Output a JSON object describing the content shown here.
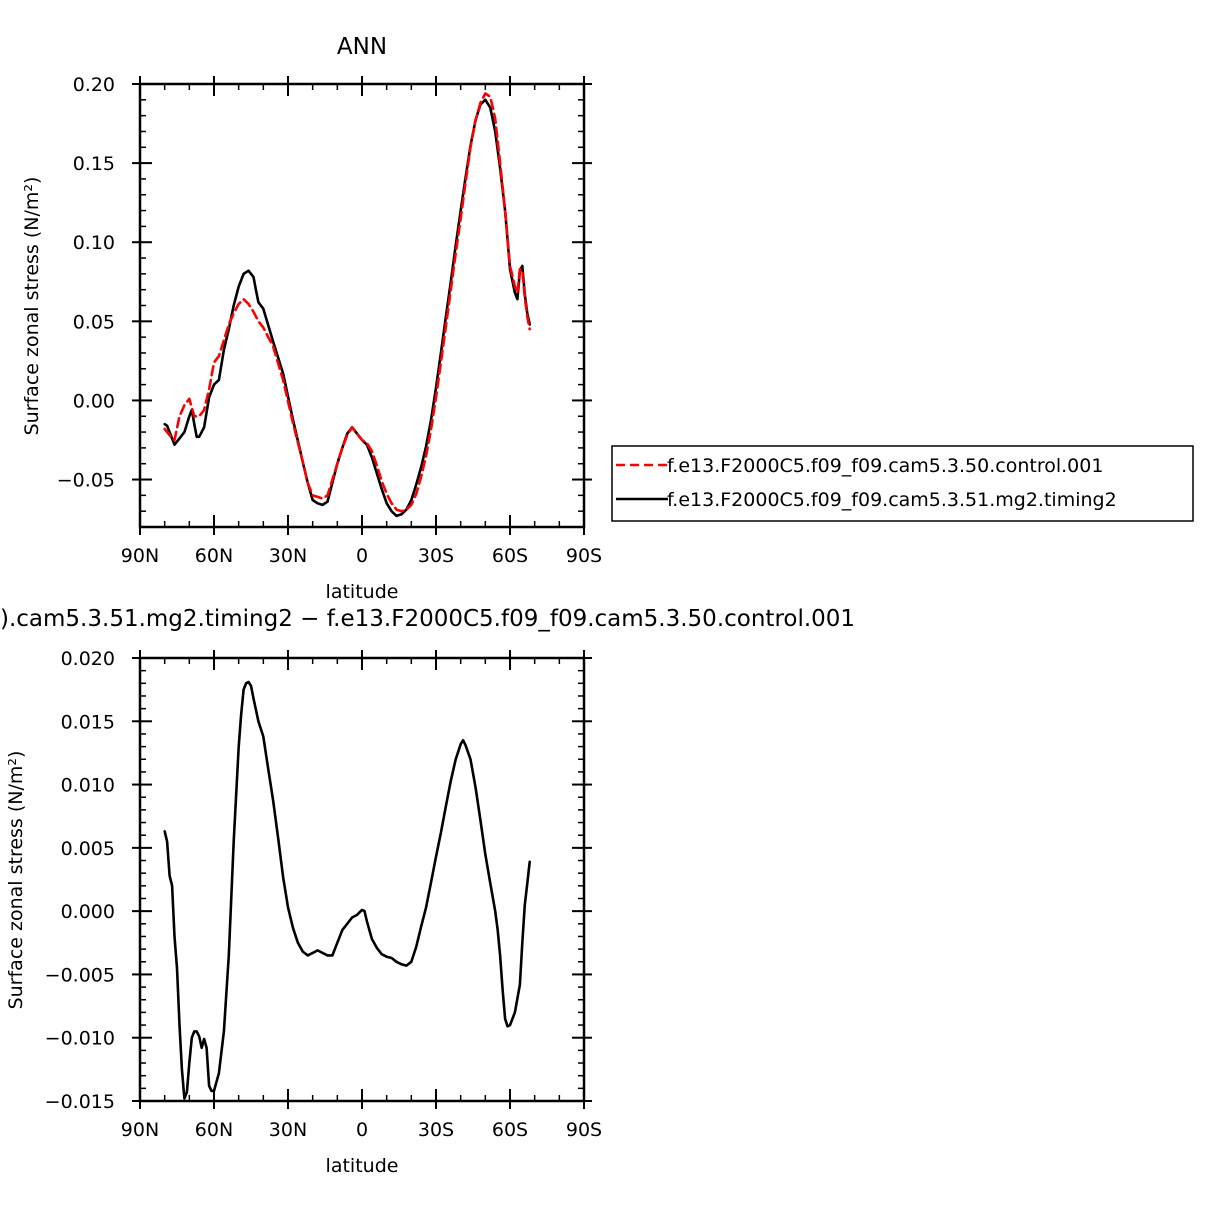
{
  "chart_data": [
    {
      "type": "line",
      "title": "ANN",
      "xlabel": "latitude",
      "ylabel": "Surface zonal stress (N/m²)",
      "xlim": [
        -90,
        90
      ],
      "ylim": [
        -0.08,
        0.2
      ],
      "x_ticks": [
        -90,
        -60,
        -30,
        0,
        30,
        60,
        90
      ],
      "x_tick_labels": [
        "90N",
        "60N",
        "30N",
        "0",
        "30S",
        "60S",
        "90S"
      ],
      "y_ticks": [
        -0.05,
        0.0,
        0.05,
        0.1,
        0.15,
        0.2
      ],
      "y_tick_labels": [
        "−0.05",
        "0.00",
        "0.05",
        "0.10",
        "0.15",
        "0.20"
      ],
      "legend_position": "right",
      "series": [
        {
          "name": "f.e13.F2000C5.f09_f09.cam5.3.50.control.001",
          "color": "#ff0000",
          "style": "dashed",
          "x": [
            -80,
            -78,
            -76,
            -74,
            -72,
            -70,
            -68,
            -66,
            -64,
            -62,
            -60,
            -58,
            -56,
            -54,
            -52,
            -50,
            -48,
            -46,
            -44,
            -42,
            -40,
            -36,
            -32,
            -28,
            -24,
            -22,
            -20,
            -18,
            -16,
            -14,
            -12,
            -10,
            -8,
            -6,
            -4,
            -2,
            0,
            2,
            4,
            6,
            8,
            10,
            12,
            14,
            16,
            18,
            20,
            22,
            24,
            26,
            28,
            30,
            32,
            34,
            36,
            38,
            40,
            42,
            44,
            46,
            48,
            50,
            52,
            54,
            56,
            58,
            60,
            62,
            63,
            64,
            65,
            66,
            67,
            68
          ],
          "y": [
            -0.018,
            -0.022,
            -0.025,
            -0.01,
            -0.003,
            0.001,
            -0.01,
            -0.01,
            -0.006,
            0.007,
            0.024,
            0.028,
            0.038,
            0.048,
            0.055,
            0.061,
            0.064,
            0.061,
            0.056,
            0.05,
            0.046,
            0.034,
            0.013,
            -0.014,
            -0.039,
            -0.052,
            -0.06,
            -0.061,
            -0.062,
            -0.06,
            -0.05,
            -0.04,
            -0.03,
            -0.022,
            -0.017,
            -0.021,
            -0.025,
            -0.027,
            -0.032,
            -0.041,
            -0.051,
            -0.059,
            -0.065,
            -0.069,
            -0.07,
            -0.069,
            -0.066,
            -0.059,
            -0.048,
            -0.035,
            -0.018,
            0.002,
            0.024,
            0.047,
            0.07,
            0.093,
            0.115,
            0.138,
            0.16,
            0.177,
            0.188,
            0.194,
            0.192,
            0.178,
            0.15,
            0.12,
            0.085,
            0.072,
            0.068,
            0.083,
            0.082,
            0.065,
            0.053,
            0.045
          ]
        },
        {
          "name": "f.e13.F2000C5.f09_f09.cam5.3.51.mg2.timing2",
          "color": "#000000",
          "style": "solid",
          "x": [
            -80,
            -79,
            -78,
            -76,
            -74,
            -72,
            -70,
            -69,
            -68,
            -67,
            -66,
            -64,
            -62,
            -60,
            -58,
            -56,
            -54,
            -52,
            -50,
            -48,
            -46,
            -44,
            -43,
            -42,
            -40,
            -36,
            -32,
            -28,
            -24,
            -22,
            -20,
            -18,
            -16,
            -14,
            -12,
            -10,
            -8,
            -6,
            -4,
            -2,
            0,
            2,
            4,
            6,
            8,
            10,
            12,
            14,
            16,
            18,
            20,
            22,
            24,
            26,
            28,
            30,
            32,
            34,
            36,
            38,
            40,
            42,
            44,
            46,
            48,
            50,
            52,
            54,
            56,
            58,
            60,
            62,
            63,
            64,
            65,
            66,
            67,
            68
          ],
          "y": [
            -0.015,
            -0.016,
            -0.02,
            -0.028,
            -0.024,
            -0.02,
            -0.01,
            -0.006,
            -0.015,
            -0.023,
            -0.023,
            -0.017,
            0.002,
            0.01,
            0.013,
            0.032,
            0.045,
            0.06,
            0.072,
            0.08,
            0.082,
            0.078,
            0.07,
            0.062,
            0.058,
            0.037,
            0.017,
            -0.012,
            -0.039,
            -0.052,
            -0.063,
            -0.065,
            -0.066,
            -0.064,
            -0.052,
            -0.04,
            -0.03,
            -0.021,
            -0.017,
            -0.021,
            -0.025,
            -0.028,
            -0.036,
            -0.046,
            -0.056,
            -0.065,
            -0.07,
            -0.073,
            -0.072,
            -0.069,
            -0.063,
            -0.053,
            -0.042,
            -0.029,
            -0.012,
            0.008,
            0.03,
            0.053,
            0.075,
            0.098,
            0.12,
            0.141,
            0.161,
            0.177,
            0.187,
            0.19,
            0.185,
            0.17,
            0.147,
            0.12,
            0.083,
            0.068,
            0.064,
            0.082,
            0.085,
            0.067,
            0.055,
            0.048
          ]
        }
      ]
    },
    {
      "type": "line",
      "title": ").cam5.3.51.mg2.timing2 − f.e13.F2000C5.f09_f09.cam5.3.50.control.001",
      "xlabel": "latitude",
      "ylabel": "Surface zonal stress (N/m²)",
      "xlim": [
        -90,
        90
      ],
      "ylim": [
        -0.015,
        0.02
      ],
      "x_ticks": [
        -90,
        -60,
        -30,
        0,
        30,
        60,
        90
      ],
      "x_tick_labels": [
        "90N",
        "60N",
        "30N",
        "0",
        "30S",
        "60S",
        "90S"
      ],
      "y_ticks": [
        -0.015,
        -0.01,
        -0.005,
        0.0,
        0.005,
        0.01,
        0.015,
        0.02
      ],
      "y_tick_labels": [
        "−0.015",
        "−0.010",
        "−0.005",
        "0.000",
        "0.005",
        "0.010",
        "0.015",
        "0.020"
      ],
      "series": [
        {
          "color": "#000000",
          "style": "solid",
          "x": [
            -80,
            -79,
            -78,
            -77,
            -76,
            -75,
            -74,
            -73,
            -72,
            -71,
            -70,
            -69,
            -68,
            -67,
            -66,
            -65,
            -64,
            -63,
            -62,
            -61,
            -60,
            -58,
            -56,
            -54,
            -52,
            -50,
            -49,
            -48,
            -47,
            -46,
            -45,
            -44,
            -42,
            -40,
            -38,
            -36,
            -34,
            -32,
            -30,
            -28,
            -26,
            -24,
            -22,
            -20,
            -18,
            -16,
            -14,
            -12,
            -10,
            -8,
            -6,
            -4,
            -2,
            -1,
            0,
            1,
            2,
            4,
            6,
            8,
            10,
            12,
            14,
            16,
            18,
            20,
            22,
            24,
            26,
            28,
            30,
            32,
            34,
            36,
            38,
            40,
            41,
            42,
            44,
            46,
            48,
            50,
            52,
            54,
            55,
            56,
            57,
            58,
            59,
            60,
            62,
            64,
            65,
            66,
            67,
            68
          ],
          "y": [
            0.0063,
            0.0055,
            0.0028,
            0.002,
            -0.002,
            -0.0045,
            -0.009,
            -0.0125,
            -0.0148,
            -0.0143,
            -0.012,
            -0.01,
            -0.0095,
            -0.0095,
            -0.0099,
            -0.0108,
            -0.0101,
            -0.0108,
            -0.0138,
            -0.0142,
            -0.0142,
            -0.0128,
            -0.0095,
            -0.0035,
            0.0055,
            0.013,
            0.0155,
            0.0175,
            0.018,
            0.0181,
            0.0178,
            0.0168,
            0.015,
            0.0138,
            0.0112,
            0.0087,
            0.0058,
            0.0027,
            0.0003,
            -0.0013,
            -0.0025,
            -0.0032,
            -0.0035,
            -0.0033,
            -0.0031,
            -0.0033,
            -0.0035,
            -0.0035,
            -0.0025,
            -0.0015,
            -0.001,
            -0.0005,
            -0.0003,
            -0.0001,
            0.0001,
            0.0,
            -0.0008,
            -0.0022,
            -0.0029,
            -0.0034,
            -0.0036,
            -0.0037,
            -0.004,
            -0.0042,
            -0.0043,
            -0.004,
            -0.0028,
            -0.0012,
            0.0003,
            0.0023,
            0.0043,
            0.0062,
            0.0083,
            0.0103,
            0.012,
            0.0132,
            0.0135,
            0.0131,
            0.012,
            0.0098,
            0.0072,
            0.0045,
            0.0022,
            0.0,
            -0.0015,
            -0.0035,
            -0.0062,
            -0.0085,
            -0.0091,
            -0.009,
            -0.008,
            -0.0058,
            -0.0025,
            0.0005,
            0.0022,
            0.0039
          ]
        }
      ]
    }
  ]
}
